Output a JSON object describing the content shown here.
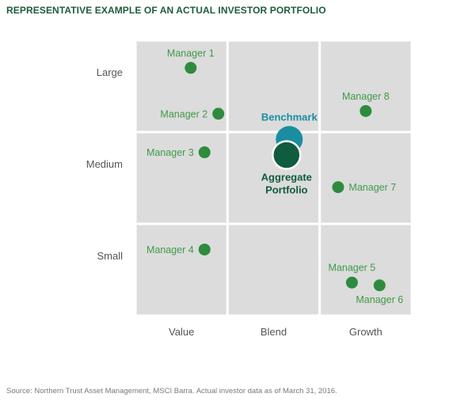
{
  "title": "REPRESENTATIVE EXAMPLE OF AN ACTUAL INVESTOR PORTFOLIO",
  "source": "Source: Northern Trust Asset Management, MSCI Barra. Actual investor data as of March 31, 2016.",
  "colors": {
    "grid_fill": "#dcdcdc",
    "grid_line": "#ffffff",
    "manager": "#2e8b3e",
    "manager_label": "#3f9a48",
    "benchmark": "#1a8ea0",
    "aggregate": "#0f5c3e",
    "axis_label": "#555555",
    "title": "#1e5c3d"
  },
  "chart_data": {
    "type": "scatter",
    "x_categories": [
      "Value",
      "Blend",
      "Growth"
    ],
    "y_categories": [
      "Small",
      "Medium",
      "Large"
    ],
    "xlim": [
      0,
      3
    ],
    "ylim": [
      0,
      3
    ],
    "grid": true,
    "points": [
      {
        "label": "Manager 1",
        "x": 0.6,
        "y": 2.7,
        "kind": "manager",
        "label_pos": "above"
      },
      {
        "label": "Manager 2",
        "x": 0.9,
        "y": 2.2,
        "kind": "manager",
        "label_pos": "left"
      },
      {
        "label": "Manager 3",
        "x": 0.75,
        "y": 1.78,
        "kind": "manager",
        "label_pos": "left"
      },
      {
        "label": "Manager 4",
        "x": 0.75,
        "y": 0.72,
        "kind": "manager",
        "label_pos": "left"
      },
      {
        "label": "Manager 5",
        "x": 2.35,
        "y": 0.36,
        "kind": "manager",
        "label_pos": "above"
      },
      {
        "label": "Manager 6",
        "x": 2.65,
        "y": 0.33,
        "kind": "manager",
        "label_pos": "below"
      },
      {
        "label": "Manager 7",
        "x": 2.2,
        "y": 1.4,
        "kind": "manager",
        "label_pos": "right"
      },
      {
        "label": "Manager 8",
        "x": 2.5,
        "y": 2.23,
        "kind": "manager",
        "label_pos": "above"
      },
      {
        "label": "Benchmark",
        "x": 1.67,
        "y": 1.92,
        "kind": "benchmark",
        "label_pos": "above"
      },
      {
        "label": "Aggregate Portfolio",
        "label_lines": [
          "Aggregate",
          "Portfolio"
        ],
        "x": 1.64,
        "y": 1.75,
        "kind": "aggregate",
        "label_pos": "below"
      }
    ]
  }
}
